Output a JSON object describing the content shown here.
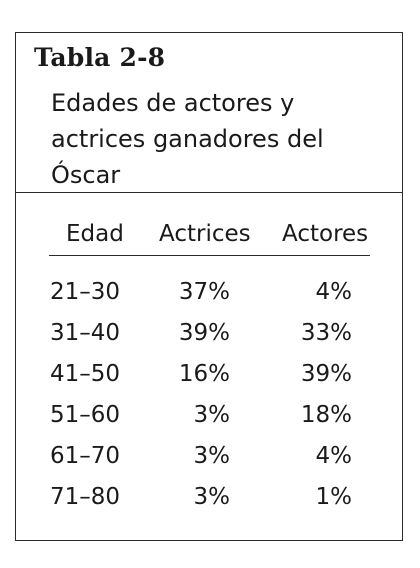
{
  "table": {
    "label": "Tabla 2-8",
    "caption_lines": [
      "Edades de actores y",
      "actrices ganadores del",
      "Óscar"
    ],
    "headers": {
      "edad": "Edad",
      "actrices": "Actrices",
      "actores": "Actores"
    },
    "rows": [
      {
        "edad": "21–30",
        "actrices": "37%",
        "actores": "4%"
      },
      {
        "edad": "31–40",
        "actrices": "39%",
        "actores": "33%"
      },
      {
        "edad": "41–50",
        "actrices": "16%",
        "actores": "39%"
      },
      {
        "edad": "51–60",
        "actrices": "3%",
        "actores": "18%"
      },
      {
        "edad": "61–70",
        "actrices": "3%",
        "actores": "4%"
      },
      {
        "edad": "71–80",
        "actrices": "3%",
        "actores": "1%"
      }
    ]
  }
}
